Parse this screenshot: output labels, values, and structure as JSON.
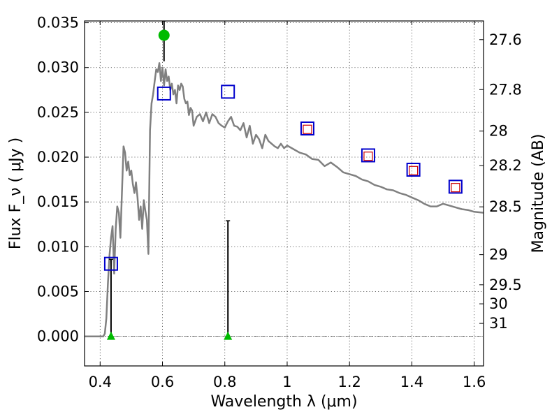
{
  "chart_data": {
    "type": "scatter",
    "title": "",
    "xlabel": "Wavelength  λ (μm)",
    "ylabel": "Flux  F_ν  ( μJy )",
    "ylabel_right": "Magnitude (AB)",
    "xlim": [
      0.35,
      1.63
    ],
    "ylim": [
      -0.0033,
      0.0352
    ],
    "grid": true,
    "x_ticks": [
      0.4,
      0.6,
      0.8,
      1.0,
      1.2,
      1.4,
      1.6
    ],
    "x_tick_labels": [
      "0.4",
      "0.6",
      "0.8",
      "1",
      "1.2",
      "1.4",
      "1.6"
    ],
    "y_ticks": [
      0.0,
      0.005,
      0.01,
      0.015,
      0.02,
      0.025,
      0.03,
      0.035
    ],
    "y_tick_labels": [
      "0.000",
      "0.005",
      "0.010",
      "0.015",
      "0.020",
      "0.025",
      "0.030",
      "0.035"
    ],
    "right_ticks": [
      {
        "mag": 27.6,
        "label": "27.6"
      },
      {
        "mag": 27.8,
        "label": "27.8"
      },
      {
        "mag": 28.0,
        "label": "28"
      },
      {
        "mag": 28.2,
        "label": "28.2"
      },
      {
        "mag": 28.5,
        "label": "28.5"
      },
      {
        "mag": 29.0,
        "label": "29"
      },
      {
        "mag": 29.5,
        "label": "29.5"
      },
      {
        "mag": 30.0,
        "label": "30"
      },
      {
        "mag": 31.0,
        "label": "31"
      }
    ],
    "series": [
      {
        "kind": "line",
        "color": "#808080",
        "x": [
          0.35,
          0.41,
          0.415,
          0.42,
          0.425,
          0.43,
          0.435,
          0.44,
          0.445,
          0.45,
          0.455,
          0.46,
          0.465,
          0.47,
          0.475,
          0.48,
          0.485,
          0.49,
          0.495,
          0.5,
          0.505,
          0.51,
          0.515,
          0.52,
          0.525,
          0.53,
          0.535,
          0.54,
          0.545,
          0.55,
          0.555,
          0.56,
          0.565,
          0.57,
          0.575,
          0.58,
          0.585,
          0.59,
          0.595,
          0.6,
          0.605,
          0.61,
          0.615,
          0.62,
          0.625,
          0.63,
          0.635,
          0.64,
          0.645,
          0.65,
          0.655,
          0.66,
          0.665,
          0.67,
          0.675,
          0.68,
          0.685,
          0.69,
          0.695,
          0.7,
          0.71,
          0.72,
          0.73,
          0.74,
          0.75,
          0.76,
          0.77,
          0.78,
          0.79,
          0.8,
          0.81,
          0.82,
          0.83,
          0.84,
          0.85,
          0.86,
          0.87,
          0.88,
          0.89,
          0.9,
          0.91,
          0.92,
          0.93,
          0.94,
          0.95,
          0.96,
          0.97,
          0.98,
          0.99,
          1.0,
          1.02,
          1.04,
          1.06,
          1.08,
          1.1,
          1.12,
          1.14,
          1.16,
          1.18,
          1.2,
          1.22,
          1.24,
          1.26,
          1.28,
          1.3,
          1.32,
          1.34,
          1.36,
          1.38,
          1.4,
          1.42,
          1.44,
          1.46,
          1.48,
          1.5,
          1.52,
          1.54,
          1.56,
          1.58,
          1.6,
          1.63
        ],
        "y": [
          0.0,
          0.0,
          0.0003,
          0.002,
          0.006,
          0.009,
          0.011,
          0.0123,
          0.007,
          0.012,
          0.0145,
          0.0138,
          0.011,
          0.016,
          0.0212,
          0.0205,
          0.0185,
          0.0195,
          0.018,
          0.0185,
          0.017,
          0.016,
          0.0172,
          0.0155,
          0.013,
          0.0145,
          0.012,
          0.0152,
          0.014,
          0.013,
          0.0092,
          0.023,
          0.026,
          0.027,
          0.0285,
          0.0298,
          0.0295,
          0.0305,
          0.0285,
          0.03,
          0.028,
          0.0298,
          0.0285,
          0.029,
          0.0275,
          0.0282,
          0.027,
          0.0275,
          0.026,
          0.028,
          0.0275,
          0.0282,
          0.0279,
          0.0265,
          0.026,
          0.0262,
          0.0247,
          0.0255,
          0.0252,
          0.0235,
          0.0245,
          0.0248,
          0.024,
          0.025,
          0.0238,
          0.0248,
          0.0245,
          0.0238,
          0.0235,
          0.0233,
          0.024,
          0.0245,
          0.0235,
          0.0234,
          0.023,
          0.0238,
          0.0222,
          0.0235,
          0.0215,
          0.0225,
          0.022,
          0.021,
          0.0225,
          0.0218,
          0.0215,
          0.0212,
          0.021,
          0.0215,
          0.021,
          0.0213,
          0.0209,
          0.0205,
          0.0203,
          0.0198,
          0.0197,
          0.019,
          0.0194,
          0.0189,
          0.0183,
          0.0181,
          0.0179,
          0.0175,
          0.0173,
          0.0169,
          0.0167,
          0.0164,
          0.0163,
          0.016,
          0.0158,
          0.0155,
          0.0152,
          0.0148,
          0.0145,
          0.0145,
          0.0148,
          0.0146,
          0.0144,
          0.0142,
          0.0141,
          0.0139,
          0.0138
        ]
      },
      {
        "kind": "markers",
        "marker": "open-square",
        "color": "#0000cc",
        "x": [
          0.435,
          0.605,
          0.81,
          1.065,
          1.26,
          1.405,
          1.54
        ],
        "y": [
          0.0081,
          0.0271,
          0.0273,
          0.0232,
          0.0202,
          0.0186,
          0.0167
        ]
      },
      {
        "kind": "markers",
        "marker": "open-square-small",
        "color": "#cc0000",
        "x": [
          1.065,
          1.26,
          1.405,
          1.54
        ],
        "y": [
          0.0231,
          0.0201,
          0.0185,
          0.0166
        ]
      },
      {
        "kind": "markers",
        "marker": "circle",
        "color": "#00bb00",
        "x": [
          0.605
        ],
        "y": [
          0.0336
        ]
      },
      {
        "kind": "markers",
        "marker": "triangle-up",
        "color": "#00bb00",
        "x": [
          0.435,
          0.81
        ],
        "y": [
          0.0,
          0.0
        ]
      }
    ],
    "error_bars": [
      {
        "x": 0.435,
        "y_low": 0.0,
        "y_high": 0.0086
      },
      {
        "x": 0.605,
        "y_low": 0.0307,
        "y_high": 0.0352
      },
      {
        "x": 0.81,
        "y_low": 0.0,
        "y_high": 0.0129
      }
    ],
    "zero_line": {
      "y": 0.0,
      "style": "dash-dot"
    }
  }
}
